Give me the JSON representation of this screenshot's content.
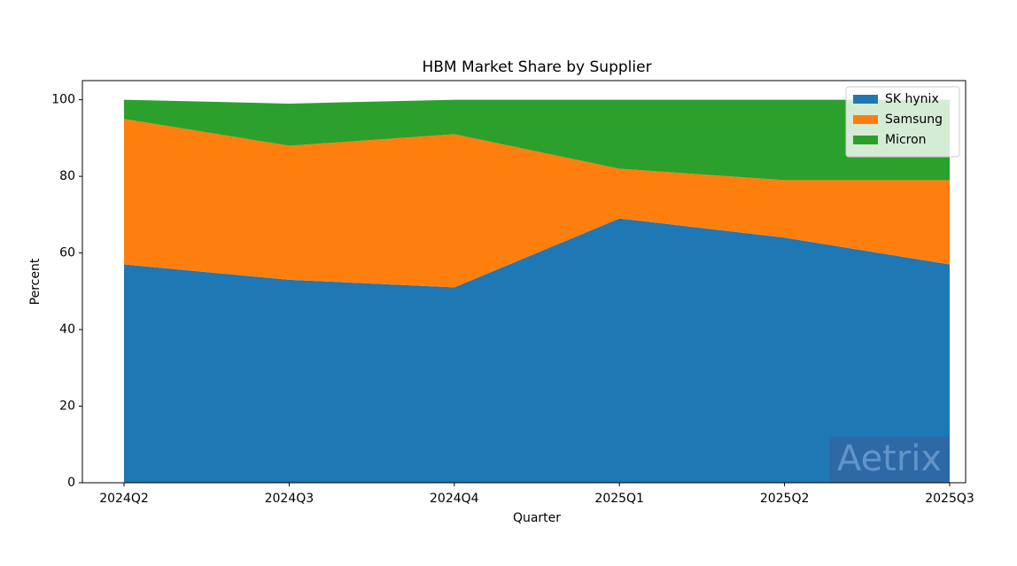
{
  "chart_data": {
    "type": "stacked_area",
    "title": "HBM Market Share by Supplier",
    "xlabel": "Quarter",
    "ylabel": "Percent",
    "categories": [
      "2024Q2",
      "2024Q3",
      "2024Q4",
      "2025Q1",
      "2025Q2",
      "2025Q3"
    ],
    "series": [
      {
        "name": "SK hynix",
        "color": "#1f77b4",
        "values": [
          57,
          53,
          51,
          69,
          64,
          57
        ]
      },
      {
        "name": "Samsung",
        "color": "#ff7f0e",
        "values": [
          38,
          35,
          40,
          13,
          15,
          22
        ]
      },
      {
        "name": "Micron",
        "color": "#2ca02c",
        "values": [
          5,
          11,
          9,
          18,
          21,
          21
        ]
      }
    ],
    "ylim": [
      0,
      105
    ],
    "yticks": [
      0,
      20,
      40,
      60,
      80,
      100
    ],
    "legend": "upper right",
    "grid": false,
    "watermark": "Aetrix"
  }
}
